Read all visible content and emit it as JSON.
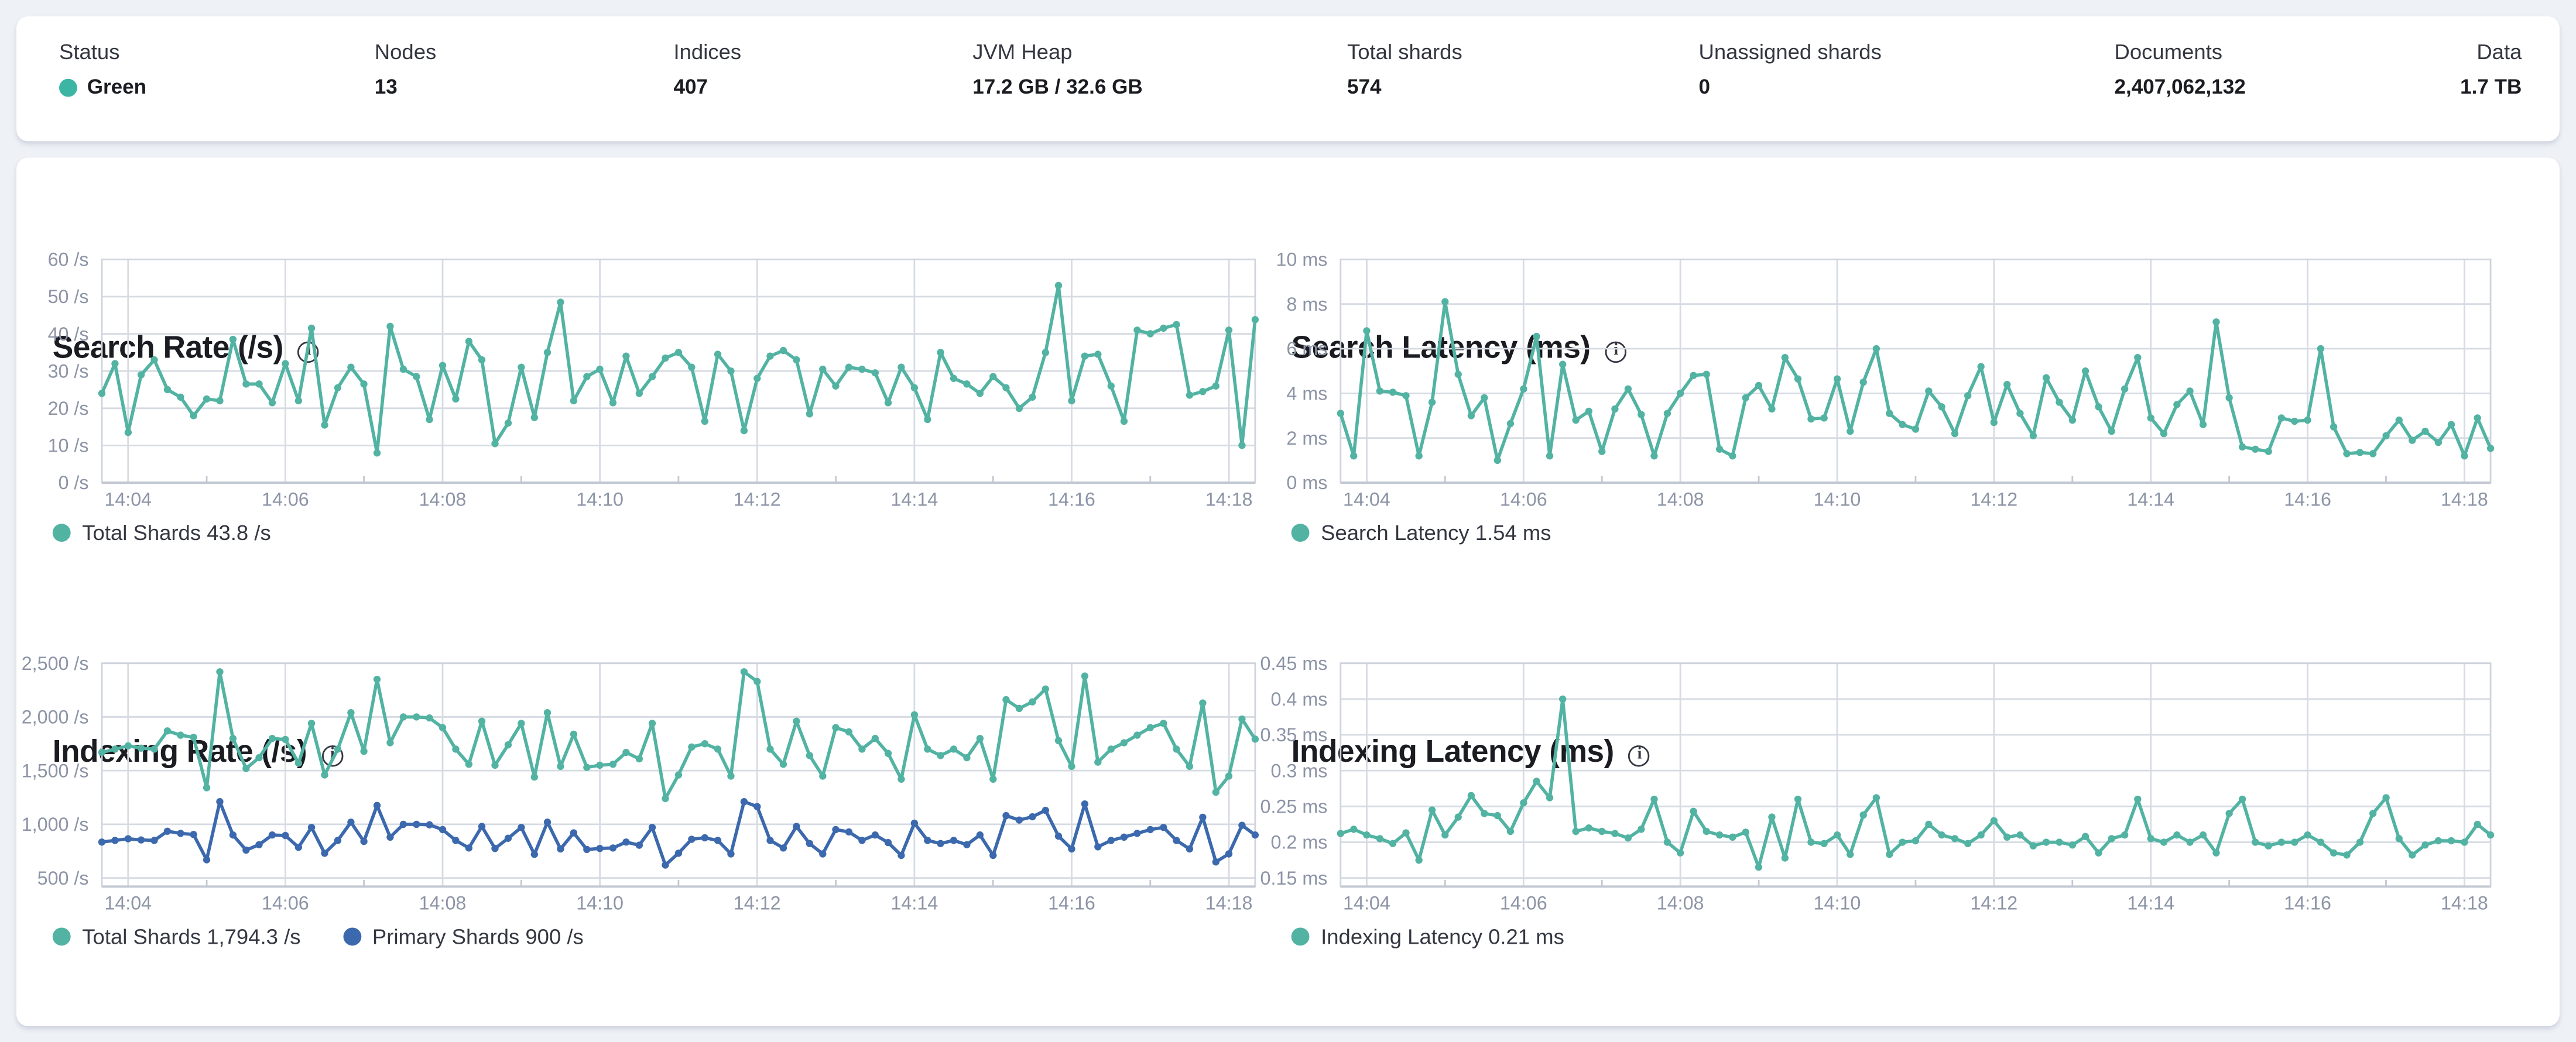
{
  "header": {
    "status_color": "#3cb5a5",
    "stats": [
      {
        "label": "Status",
        "value": "Green"
      },
      {
        "label": "Nodes",
        "value": "13"
      },
      {
        "label": "Indices",
        "value": "407"
      },
      {
        "label": "JVM Heap",
        "value": "17.2 GB / 32.6 GB"
      },
      {
        "label": "Total shards",
        "value": "574"
      },
      {
        "label": "Unassigned shards",
        "value": "0"
      },
      {
        "label": "Documents",
        "value": "2,407,062,132"
      },
      {
        "label": "Data",
        "value": "1.7 TB"
      }
    ]
  },
  "chart_data": [
    {
      "type": "line",
      "title": "Search Rate (/s)",
      "ylabel": "/s",
      "x_range": [
        "14:03:40",
        "14:18:20"
      ],
      "x_interval_s": 10,
      "ylim": [
        0,
        60
      ],
      "grid": true,
      "legend_position": "bottom",
      "legend": [
        {
          "label": "Total Shards 43.8 /s",
          "color": "#52b3a3"
        }
      ],
      "y_ticks": [
        {
          "v": 0,
          "label": "0 /s"
        },
        {
          "v": 10,
          "label": "10 /s"
        },
        {
          "v": 20,
          "label": "20 /s"
        },
        {
          "v": 30,
          "label": "30 /s"
        },
        {
          "v": 40,
          "label": "40 /s"
        },
        {
          "v": 50,
          "label": "50 /s"
        },
        {
          "v": 60,
          "label": "60 /s"
        }
      ],
      "x_ticks": [
        {
          "i": 2,
          "label": "14:04"
        },
        {
          "i": 14,
          "label": "14:06"
        },
        {
          "i": 26,
          "label": "14:08"
        },
        {
          "i": 38,
          "label": "14:10"
        },
        {
          "i": 50,
          "label": "14:12"
        },
        {
          "i": 62,
          "label": "14:14"
        },
        {
          "i": 74,
          "label": "14:16"
        },
        {
          "i": 86,
          "label": "14:18"
        }
      ],
      "x_minor": [
        8,
        20,
        32,
        44,
        56,
        68,
        80
      ],
      "series": [
        {
          "name": "Total Shards",
          "color": "#52b3a3",
          "current": "43.8 /s",
          "values": [
            24,
            32,
            13.5,
            29,
            33,
            25,
            23,
            18,
            22.5,
            22,
            38.5,
            26.5,
            26.5,
            21.5,
            32,
            22,
            41.5,
            15.5,
            25.5,
            31,
            26.5,
            8,
            42,
            30.5,
            28.5,
            17,
            31.5,
            22.5,
            38,
            33,
            10.5,
            16,
            31,
            17.5,
            35,
            48.5,
            22,
            28.5,
            30.5,
            21.5,
            34,
            24,
            28.5,
            33.5,
            35,
            31,
            16.5,
            34.5,
            30,
            14,
            28,
            34,
            35.5,
            33,
            18.5,
            30.5,
            26,
            31,
            30.5,
            29.5,
            21.5,
            31,
            25.5,
            17,
            35,
            28,
            26.5,
            24,
            28.5,
            25.5,
            20,
            23,
            35,
            53,
            22,
            34,
            34.5,
            26,
            16.5,
            41,
            40,
            41.5,
            42.5,
            23.5,
            24.5,
            26,
            41,
            10,
            43.8
          ]
        }
      ]
    },
    {
      "type": "line",
      "title": "Search Latency (ms)",
      "ylabel": "ms",
      "x_range": [
        "14:03:40",
        "14:18:20"
      ],
      "x_interval_s": 10,
      "ylim": [
        0,
        10
      ],
      "grid": true,
      "legend_position": "bottom",
      "legend": [
        {
          "label": "Search Latency 1.54 ms",
          "color": "#52b3a3"
        }
      ],
      "y_ticks": [
        {
          "v": 0,
          "label": "0 ms"
        },
        {
          "v": 2,
          "label": "2 ms"
        },
        {
          "v": 4,
          "label": "4 ms"
        },
        {
          "v": 6,
          "label": "6 ms"
        },
        {
          "v": 8,
          "label": "8 ms"
        },
        {
          "v": 10,
          "label": "10 ms"
        }
      ],
      "x_ticks": [
        {
          "i": 2,
          "label": "14:04"
        },
        {
          "i": 14,
          "label": "14:06"
        },
        {
          "i": 26,
          "label": "14:08"
        },
        {
          "i": 38,
          "label": "14:10"
        },
        {
          "i": 50,
          "label": "14:12"
        },
        {
          "i": 62,
          "label": "14:14"
        },
        {
          "i": 74,
          "label": "14:16"
        },
        {
          "i": 86,
          "label": "14:18"
        }
      ],
      "x_minor": [
        8,
        20,
        32,
        44,
        56,
        68,
        80
      ],
      "series": [
        {
          "name": "Search Latency",
          "color": "#52b3a3",
          "current": "1.54 ms",
          "values": [
            3.1,
            1.2,
            6.8,
            4.1,
            4.05,
            3.9,
            1.2,
            3.6,
            8.1,
            4.85,
            3.0,
            3.8,
            1.0,
            2.65,
            4.2,
            6.55,
            1.2,
            5.3,
            2.8,
            3.2,
            1.4,
            3.3,
            4.2,
            3.05,
            1.2,
            3.1,
            4.0,
            4.8,
            4.85,
            1.5,
            1.2,
            3.8,
            4.35,
            3.3,
            5.6,
            4.65,
            2.85,
            2.9,
            4.65,
            2.3,
            4.5,
            6.0,
            3.1,
            2.6,
            2.4,
            4.1,
            3.4,
            2.2,
            3.9,
            5.2,
            2.7,
            4.4,
            3.1,
            2.1,
            4.7,
            3.6,
            2.8,
            5.0,
            3.4,
            2.3,
            4.2,
            5.6,
            2.9,
            2.2,
            3.5,
            4.1,
            2.6,
            7.2,
            3.8,
            1.6,
            1.5,
            1.4,
            2.9,
            2.75,
            2.8,
            6.0,
            2.5,
            1.3,
            1.35,
            1.3,
            2.1,
            2.8,
            1.9,
            2.3,
            1.8,
            2.6,
            1.2,
            2.9,
            1.54
          ]
        }
      ]
    },
    {
      "type": "line",
      "title": "Indexing Rate (/s)",
      "ylabel": "/s",
      "x_range": [
        "14:03:40",
        "14:18:20"
      ],
      "x_interval_s": 10,
      "ylim": [
        420,
        2500
      ],
      "grid": true,
      "legend_position": "bottom",
      "legend": [
        {
          "label": "Total Shards 1,794.3 /s",
          "color": "#52b3a3"
        },
        {
          "label": "Primary Shards 900 /s",
          "color": "#3c69ad"
        }
      ],
      "y_ticks": [
        {
          "v": 500,
          "label": "500 /s"
        },
        {
          "v": 1000,
          "label": "1,000 /s"
        },
        {
          "v": 1500,
          "label": "1,500 /s"
        },
        {
          "v": 2000,
          "label": "2,000 /s"
        },
        {
          "v": 2500,
          "label": "2,500 /s"
        }
      ],
      "x_ticks": [
        {
          "i": 2,
          "label": "14:04"
        },
        {
          "i": 14,
          "label": "14:06"
        },
        {
          "i": 26,
          "label": "14:08"
        },
        {
          "i": 38,
          "label": "14:10"
        },
        {
          "i": 50,
          "label": "14:12"
        },
        {
          "i": 62,
          "label": "14:14"
        },
        {
          "i": 74,
          "label": "14:16"
        },
        {
          "i": 86,
          "label": "14:18"
        }
      ],
      "x_minor": [
        8,
        20,
        32,
        44,
        56,
        68,
        80
      ],
      "series": [
        {
          "name": "Total Shards",
          "color": "#52b3a3",
          "current": "1,794.3 /s",
          "values": [
            1670,
            1700,
            1730,
            1710,
            1700,
            1870,
            1830,
            1810,
            1340,
            2420,
            1800,
            1520,
            1620,
            1800,
            1790,
            1570,
            1940,
            1460,
            1700,
            2040,
            1680,
            2350,
            1760,
            2000,
            2000,
            1990,
            1900,
            1700,
            1560,
            1960,
            1550,
            1740,
            1940,
            1440,
            2040,
            1540,
            1840,
            1530,
            1550,
            1560,
            1670,
            1610,
            1940,
            1240,
            1460,
            1720,
            1750,
            1700,
            1450,
            2420,
            2330,
            1700,
            1560,
            1960,
            1640,
            1450,
            1900,
            1860,
            1700,
            1800,
            1660,
            1420,
            2020,
            1700,
            1640,
            1700,
            1620,
            1800,
            1420,
            2160,
            2080,
            2140,
            2260,
            1780,
            1540,
            2380,
            1580,
            1700,
            1760,
            1830,
            1900,
            1940,
            1700,
            1540,
            2130,
            1300,
            1450,
            1980,
            1794
          ]
        },
        {
          "name": "Primary Shards",
          "color": "#3c69ad",
          "current": "900 /s",
          "values": [
            835,
            850,
            865,
            855,
            850,
            935,
            915,
            905,
            670,
            1210,
            900,
            760,
            810,
            900,
            895,
            785,
            970,
            730,
            850,
            1020,
            840,
            1175,
            880,
            1000,
            1000,
            995,
            950,
            850,
            780,
            980,
            775,
            870,
            970,
            720,
            1020,
            770,
            920,
            765,
            775,
            780,
            835,
            805,
            970,
            620,
            730,
            860,
            875,
            850,
            725,
            1210,
            1165,
            850,
            780,
            980,
            820,
            725,
            950,
            930,
            850,
            900,
            830,
            710,
            1010,
            850,
            820,
            850,
            810,
            900,
            710,
            1080,
            1040,
            1070,
            1130,
            890,
            770,
            1190,
            790,
            850,
            880,
            915,
            950,
            970,
            850,
            770,
            1065,
            650,
            725,
            990,
            900
          ]
        }
      ]
    },
    {
      "type": "line",
      "title": "Indexing Latency (ms)",
      "ylabel": "ms",
      "x_range": [
        "14:03:40",
        "14:18:20"
      ],
      "x_interval_s": 10,
      "ylim": [
        0.138,
        0.45
      ],
      "grid": true,
      "legend_position": "bottom",
      "legend": [
        {
          "label": "Indexing Latency 0.21 ms",
          "color": "#52b3a3"
        }
      ],
      "y_ticks": [
        {
          "v": 0.15,
          "label": "0.15 ms"
        },
        {
          "v": 0.2,
          "label": "0.2 ms"
        },
        {
          "v": 0.25,
          "label": "0.25 ms"
        },
        {
          "v": 0.3,
          "label": "0.3 ms"
        },
        {
          "v": 0.35,
          "label": "0.35 ms"
        },
        {
          "v": 0.4,
          "label": "0.4 ms"
        },
        {
          "v": 0.45,
          "label": "0.45 ms"
        }
      ],
      "x_ticks": [
        {
          "i": 2,
          "label": "14:04"
        },
        {
          "i": 14,
          "label": "14:06"
        },
        {
          "i": 26,
          "label": "14:08"
        },
        {
          "i": 38,
          "label": "14:10"
        },
        {
          "i": 50,
          "label": "14:12"
        },
        {
          "i": 62,
          "label": "14:14"
        },
        {
          "i": 74,
          "label": "14:16"
        },
        {
          "i": 86,
          "label": "14:18"
        }
      ],
      "x_minor": [
        8,
        20,
        32,
        44,
        56,
        68,
        80
      ],
      "series": [
        {
          "name": "Indexing Latency",
          "color": "#52b3a3",
          "current": "0.21 ms",
          "values": [
            0.212,
            0.218,
            0.21,
            0.205,
            0.198,
            0.213,
            0.175,
            0.245,
            0.21,
            0.235,
            0.265,
            0.24,
            0.237,
            0.215,
            0.255,
            0.285,
            0.262,
            0.4,
            0.215,
            0.22,
            0.215,
            0.212,
            0.206,
            0.218,
            0.26,
            0.2,
            0.185,
            0.243,
            0.215,
            0.21,
            0.207,
            0.214,
            0.165,
            0.235,
            0.178,
            0.26,
            0.2,
            0.198,
            0.21,
            0.183,
            0.238,
            0.262,
            0.183,
            0.2,
            0.202,
            0.225,
            0.21,
            0.205,
            0.198,
            0.21,
            0.23,
            0.207,
            0.21,
            0.195,
            0.2,
            0.2,
            0.196,
            0.208,
            0.185,
            0.205,
            0.21,
            0.26,
            0.205,
            0.2,
            0.21,
            0.2,
            0.21,
            0.185,
            0.24,
            0.26,
            0.2,
            0.195,
            0.2,
            0.2,
            0.21,
            0.2,
            0.185,
            0.182,
            0.2,
            0.24,
            0.262,
            0.205,
            0.182,
            0.196,
            0.202,
            0.202,
            0.2,
            0.225,
            0.21
          ]
        }
      ]
    }
  ]
}
